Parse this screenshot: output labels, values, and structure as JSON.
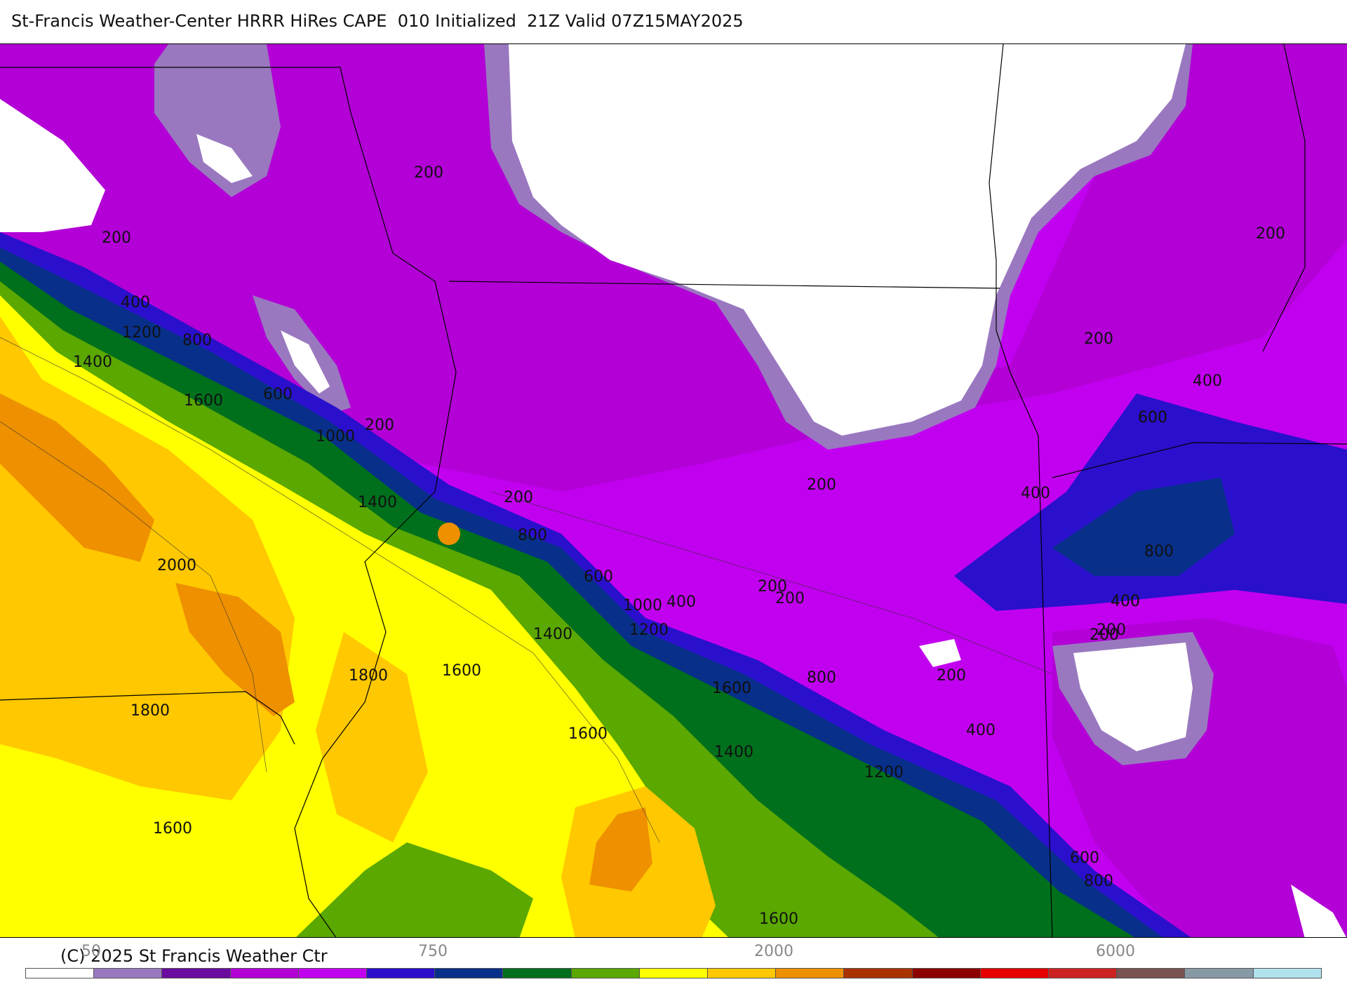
{
  "title": "St-Francis Weather-Center HRRR HiRes CAPE  010 Initialized  21Z Valid 07Z15MAY2025",
  "copyright": "(C) 2025 St Francis Weather Ctr",
  "legend": {
    "ticks": [
      "50",
      "750",
      "2000",
      "6000"
    ],
    "colors": [
      "#ffffff",
      "#9a78c0",
      "#6a0a9e",
      "#b200d6",
      "#c200f0",
      "#2a10cc",
      "#08308a",
      "#00701c",
      "#5aa800",
      "#ffff00",
      "#ffc800",
      "#ee9000",
      "#aa3200",
      "#8c0000",
      "#e80000",
      "#cc2222",
      "#7a5252",
      "#8899a6",
      "#b0e2ee"
    ]
  },
  "map": {
    "zone_colors": {
      "white": "#ffffff",
      "lavender": "#9a78c0",
      "deep_purple": "#6a0a9e",
      "magenta": "#b200d6",
      "purple": "#c200f0",
      "blue": "#2a10cc",
      "navy": "#08308a",
      "dark_green": "#00701c",
      "green": "#5aa800",
      "yellow": "#ffff00",
      "gold": "#ffc800",
      "orange": "#ee9000"
    },
    "contour_labels": [
      "200",
      "200",
      "200",
      "200",
      "200",
      "200",
      "200",
      "200",
      "200",
      "200",
      "200",
      "200",
      "400",
      "400",
      "400",
      "400",
      "400",
      "400",
      "400",
      "600",
      "600",
      "600",
      "600",
      "600",
      "800",
      "800",
      "800",
      "800",
      "800",
      "1000",
      "1000",
      "1200",
      "1200",
      "1200",
      "1400",
      "1400",
      "1400",
      "1400",
      "1600",
      "1600",
      "1600",
      "1600",
      "1600",
      "1600",
      "1600",
      "1800",
      "1800",
      "2000"
    ]
  }
}
